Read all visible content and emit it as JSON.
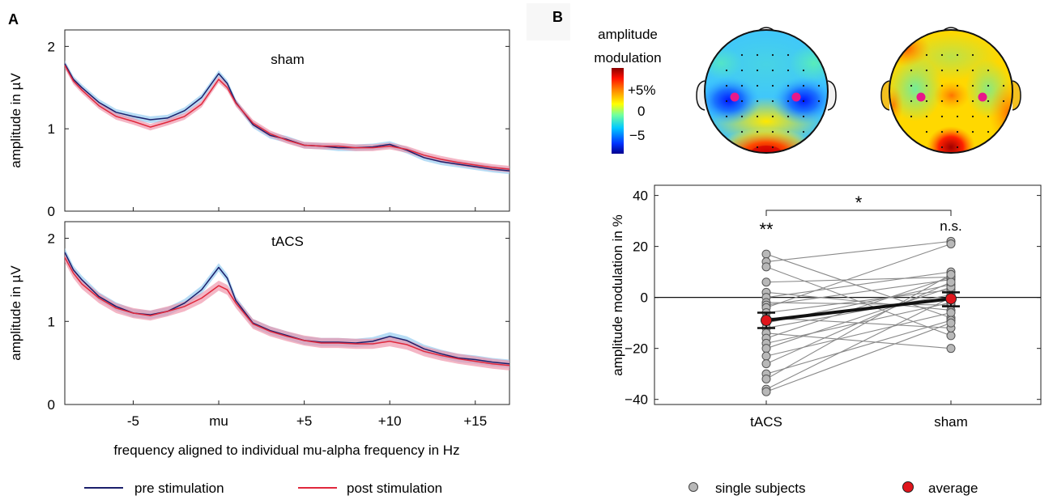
{
  "panel_a": {
    "label": "A",
    "ylabel": "amplitude in µV",
    "xlabel": "frequency aligned to individual mu-alpha frequency in Hz",
    "legend": {
      "pre": "pre stimulation",
      "post": "post stimulation"
    },
    "colors": {
      "pre": "#1b1f6b",
      "post": "#e0283c",
      "pre_band": "#8fc9ef",
      "post_band": "#ee8fa6",
      "overlap_band": "#b79ad1"
    }
  },
  "panel_b": {
    "label": "B",
    "colorbar_title_1": "amplitude",
    "colorbar_title_2": "modulation",
    "colorbar_ticks": [
      "+5%",
      "0",
      "−5"
    ],
    "legend": {
      "single": "single subjects",
      "average": "average"
    },
    "sig_between": "*",
    "sig_tacs": "**",
    "sig_sham": "n.s.",
    "colors": {
      "single_fill": "#b8b8b8",
      "average_fill": "#e0151c",
      "lines": "#8a8a8a"
    }
  },
  "chart_data": [
    {
      "type": "line",
      "title": "sham",
      "xlabel": "frequency aligned to individual mu-alpha frequency in Hz",
      "ylabel": "amplitude in µV",
      "xlim": [
        -9,
        17
      ],
      "ylim": [
        0,
        2.2
      ],
      "x_ticks": [
        -5,
        0,
        5,
        10,
        15
      ],
      "x_tick_labels": [
        "-5",
        "mu",
        "+5",
        "+10",
        "+15"
      ],
      "y_ticks": [
        0,
        1,
        2
      ],
      "y_tick_labels": [
        "0",
        "1",
        "2"
      ],
      "x": [
        -9,
        -8.5,
        -8,
        -7,
        -6,
        -5,
        -4,
        -3,
        -2,
        -1,
        0,
        0.5,
        1,
        2,
        3,
        4,
        5,
        6,
        7,
        8,
        9,
        10,
        11,
        12,
        13,
        14,
        15,
        16,
        17
      ],
      "series": [
        {
          "name": "pre stimulation",
          "values": [
            1.79,
            1.6,
            1.5,
            1.32,
            1.2,
            1.15,
            1.11,
            1.13,
            1.22,
            1.38,
            1.67,
            1.55,
            1.32,
            1.05,
            0.92,
            0.87,
            0.8,
            0.79,
            0.77,
            0.77,
            0.78,
            0.81,
            0.74,
            0.65,
            0.6,
            0.57,
            0.54,
            0.51,
            0.49
          ],
          "band": 0.04
        },
        {
          "name": "post stimulation",
          "values": [
            1.77,
            1.58,
            1.47,
            1.28,
            1.15,
            1.09,
            1.02,
            1.08,
            1.15,
            1.3,
            1.6,
            1.5,
            1.31,
            1.07,
            0.94,
            0.86,
            0.8,
            0.79,
            0.79,
            0.77,
            0.77,
            0.79,
            0.75,
            0.68,
            0.63,
            0.59,
            0.56,
            0.53,
            0.51
          ],
          "band": 0.04
        }
      ]
    },
    {
      "type": "line",
      "title": "tACS",
      "xlabel": "frequency aligned to individual mu-alpha frequency in Hz",
      "ylabel": "amplitude in µV",
      "xlim": [
        -9,
        17
      ],
      "ylim": [
        0,
        2.2
      ],
      "x_ticks": [
        -5,
        0,
        5,
        10,
        15
      ],
      "x_tick_labels": [
        "-5",
        "mu",
        "+5",
        "+10",
        "+15"
      ],
      "y_ticks": [
        0,
        1,
        2
      ],
      "y_tick_labels": [
        "0",
        "1",
        "2"
      ],
      "x": [
        -9,
        -8.5,
        -8,
        -7,
        -6,
        -5,
        -4,
        -3,
        -2,
        -1,
        0,
        0.5,
        1,
        2,
        3,
        4,
        5,
        6,
        7,
        8,
        9,
        10,
        11,
        12,
        13,
        14,
        15,
        16,
        17
      ],
      "series": [
        {
          "name": "pre stimulation",
          "values": [
            1.83,
            1.62,
            1.5,
            1.3,
            1.18,
            1.1,
            1.08,
            1.12,
            1.22,
            1.38,
            1.65,
            1.52,
            1.25,
            0.98,
            0.89,
            0.83,
            0.77,
            0.75,
            0.75,
            0.74,
            0.76,
            0.82,
            0.77,
            0.67,
            0.61,
            0.56,
            0.54,
            0.51,
            0.49
          ],
          "band": 0.05
        },
        {
          "name": "post stimulation",
          "values": [
            1.77,
            1.58,
            1.45,
            1.28,
            1.16,
            1.1,
            1.07,
            1.12,
            1.18,
            1.28,
            1.43,
            1.38,
            1.22,
            0.97,
            0.88,
            0.82,
            0.77,
            0.74,
            0.74,
            0.73,
            0.73,
            0.76,
            0.72,
            0.64,
            0.59,
            0.55,
            0.52,
            0.49,
            0.47
          ],
          "band": 0.06
        }
      ]
    },
    {
      "type": "scatter",
      "title": "",
      "xlabel": "",
      "ylabel": "amplitude modulation in %",
      "categories": [
        "tACS",
        "sham"
      ],
      "ylim": [
        -42,
        44
      ],
      "y_ticks": [
        -40,
        -20,
        0,
        20,
        40
      ],
      "y_tick_labels": [
        "−40",
        "−20",
        "0",
        "20",
        "40"
      ],
      "subjects": [
        [
          17,
          -8
        ],
        [
          14,
          22
        ],
        [
          12,
          -15
        ],
        [
          6,
          8
        ],
        [
          2,
          -5
        ],
        [
          0,
          10
        ],
        [
          -2,
          -3
        ],
        [
          -3,
          7
        ],
        [
          -4,
          21
        ],
        [
          -6,
          3
        ],
        [
          -8,
          -12
        ],
        [
          -10,
          5
        ],
        [
          -12,
          1
        ],
        [
          -14,
          -20
        ],
        [
          -16,
          8
        ],
        [
          -18,
          -2
        ],
        [
          -20,
          4
        ],
        [
          -23,
          -6
        ],
        [
          -26,
          6
        ],
        [
          -30,
          -9
        ],
        [
          -32,
          9
        ],
        [
          -36,
          0
        ],
        [
          -37,
          -10
        ]
      ],
      "average": {
        "values": [
          -9,
          -0.5
        ],
        "error_low": [
          -12,
          -3.5
        ],
        "error_high": [
          -6,
          2
        ]
      }
    }
  ]
}
